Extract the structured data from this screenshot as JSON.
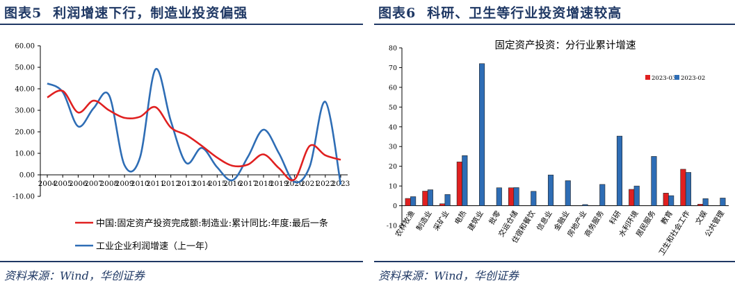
{
  "left": {
    "figure_label": "图表5",
    "figure_title": "利润增速下行，制造业投资偏强",
    "source": "资料来源：Wind，华创证券",
    "chart_data": {
      "type": "line",
      "title": "",
      "xlabel": "",
      "ylabel": "",
      "ylim": [
        -10,
        60
      ],
      "yticks": [
        "60.00",
        "50.00",
        "40.00",
        "30.00",
        "20.00",
        "10.00",
        "0.00",
        "-10.00"
      ],
      "categories": [
        "2004",
        "2005",
        "2006",
        "2007",
        "2008",
        "2009",
        "2010",
        "2011",
        "2012",
        "2013",
        "2014",
        "2015",
        "2016",
        "2017",
        "2018",
        "2019",
        "2020",
        "2021",
        "2022",
        "2023"
      ],
      "series": [
        {
          "name": "中国:固定资产投资完成额:制造业:累计同比:年度:最后一条",
          "color": "#e02020",
          "points": [
            [
              2004,
              36
            ],
            [
              2005,
              39
            ],
            [
              2006,
              29
            ],
            [
              2007,
              34.5
            ],
            [
              2008,
              30
            ],
            [
              2009,
              26.5
            ],
            [
              2010,
              27
            ],
            [
              2011,
              31.5
            ],
            [
              2012,
              22
            ],
            [
              2013,
              18.5
            ],
            [
              2014,
              13.5
            ],
            [
              2015,
              8
            ],
            [
              2016,
              4.2
            ],
            [
              2017,
              4.8
            ],
            [
              2018,
              9.5
            ],
            [
              2019,
              3.1
            ],
            [
              2020,
              -2.2
            ],
            [
              2021,
              13.5
            ],
            [
              2022,
              9.1
            ],
            [
              2023,
              7
            ]
          ]
        },
        {
          "name": "工业企业利润增速（上一年）",
          "color": "#2e6db5",
          "points": [
            [
              2004,
              42.5
            ],
            [
              2005,
              38.5
            ],
            [
              2006,
              22.5
            ],
            [
              2007,
              31
            ],
            [
              2008,
              37
            ],
            [
              2009,
              4.5
            ],
            [
              2010,
              8
            ],
            [
              2011,
              49
            ],
            [
              2012,
              25
            ],
            [
              2013,
              5.5
            ],
            [
              2014,
              12.5
            ],
            [
              2015,
              3.5
            ],
            [
              2016,
              -2.5
            ],
            [
              2017,
              8.5
            ],
            [
              2018,
              21
            ],
            [
              2019,
              10
            ],
            [
              2020,
              -3.3
            ],
            [
              2021,
              4
            ],
            [
              2022,
              34
            ],
            [
              2023,
              -4.5
            ]
          ]
        }
      ],
      "legend": "bottom",
      "grid": false
    }
  },
  "right": {
    "figure_label": "图表6",
    "figure_title": "科研、卫生等行业投资增速较高",
    "source": "资料来源：Wind，华创证券",
    "chart_data": {
      "type": "bar",
      "title": "固定资产投资：分行业累计增速",
      "xlabel": "",
      "ylabel": "",
      "ylim": [
        -10,
        80
      ],
      "yticks": [
        "80",
        "70",
        "60",
        "50",
        "40",
        "30",
        "20",
        "10",
        "0",
        "-10"
      ],
      "categories": [
        "农林牧渔",
        "制造业",
        "采矿业",
        "电热",
        "建筑业",
        "批零",
        "交运仓储",
        "住宿和餐饮",
        "信息业",
        "金融业",
        "房地产业",
        "商务服务",
        "科研",
        "水利环境",
        "居民服务",
        "教育",
        "卫生和社会工作",
        "文娱",
        "公共管理"
      ],
      "series": [
        {
          "name": "2023-03",
          "color": "#e02020",
          "values": [
            3.7,
            7.4,
            1.0,
            22.2,
            null,
            null,
            9.1,
            null,
            null,
            null,
            null,
            null,
            null,
            8.3,
            null,
            6.4,
            18.5,
            0.8,
            null
          ]
        },
        {
          "name": "2023-02",
          "color": "#2e6db5",
          "values": [
            4.6,
            8.1,
            5.7,
            25.4,
            72.0,
            9.1,
            9.2,
            7.3,
            15.6,
            12.7,
            0.6,
            10.8,
            35.3,
            10.0,
            25.0,
            5.1,
            16.9,
            3.6,
            3.9
          ]
        }
      ],
      "legend": "top-right",
      "grid": false
    }
  }
}
